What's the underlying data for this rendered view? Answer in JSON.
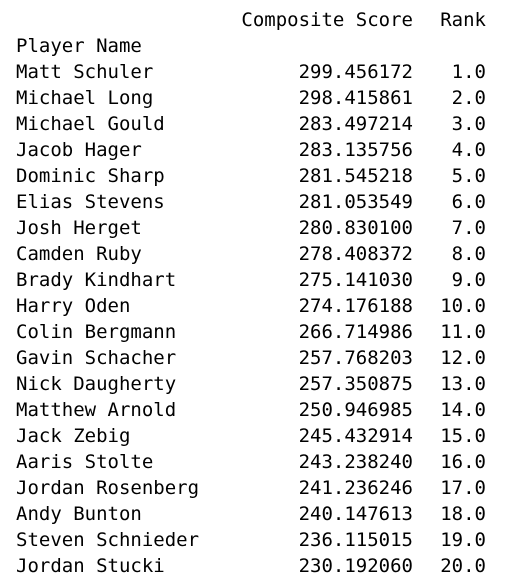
{
  "table": {
    "columns": [
      "Composite Score",
      "Rank"
    ],
    "index_name": "Player Name",
    "rows": [
      {
        "name": "Matt Schuler",
        "score": "299.456172",
        "rank": "1.0"
      },
      {
        "name": "Michael Long",
        "score": "298.415861",
        "rank": "2.0"
      },
      {
        "name": "Michael Gould",
        "score": "283.497214",
        "rank": "3.0"
      },
      {
        "name": "Jacob Hager",
        "score": "283.135756",
        "rank": "4.0"
      },
      {
        "name": "Dominic Sharp",
        "score": "281.545218",
        "rank": "5.0"
      },
      {
        "name": "Elias Stevens",
        "score": "281.053549",
        "rank": "6.0"
      },
      {
        "name": "Josh Herget",
        "score": "280.830100",
        "rank": "7.0"
      },
      {
        "name": "Camden Ruby",
        "score": "278.408372",
        "rank": "8.0"
      },
      {
        "name": "Brady Kindhart",
        "score": "275.141030",
        "rank": "9.0"
      },
      {
        "name": "Harry Oden",
        "score": "274.176188",
        "rank": "10.0"
      },
      {
        "name": "Colin Bergmann",
        "score": "266.714986",
        "rank": "11.0"
      },
      {
        "name": "Gavin Schacher",
        "score": "257.768203",
        "rank": "12.0"
      },
      {
        "name": "Nick Daugherty",
        "score": "257.350875",
        "rank": "13.0"
      },
      {
        "name": "Matthew Arnold",
        "score": "250.946985",
        "rank": "14.0"
      },
      {
        "name": "Jack Zebig",
        "score": "245.432914",
        "rank": "15.0"
      },
      {
        "name": "Aaris Stolte",
        "score": "243.238240",
        "rank": "16.0"
      },
      {
        "name": "Jordan Rosenberg",
        "score": "241.236246",
        "rank": "17.0"
      },
      {
        "name": "Andy Bunton",
        "score": "240.147613",
        "rank": "18.0"
      },
      {
        "name": "Steven Schnieder",
        "score": "236.115015",
        "rank": "19.0"
      },
      {
        "name": "Jordan Stucki",
        "score": "230.192060",
        "rank": "20.0"
      }
    ]
  }
}
